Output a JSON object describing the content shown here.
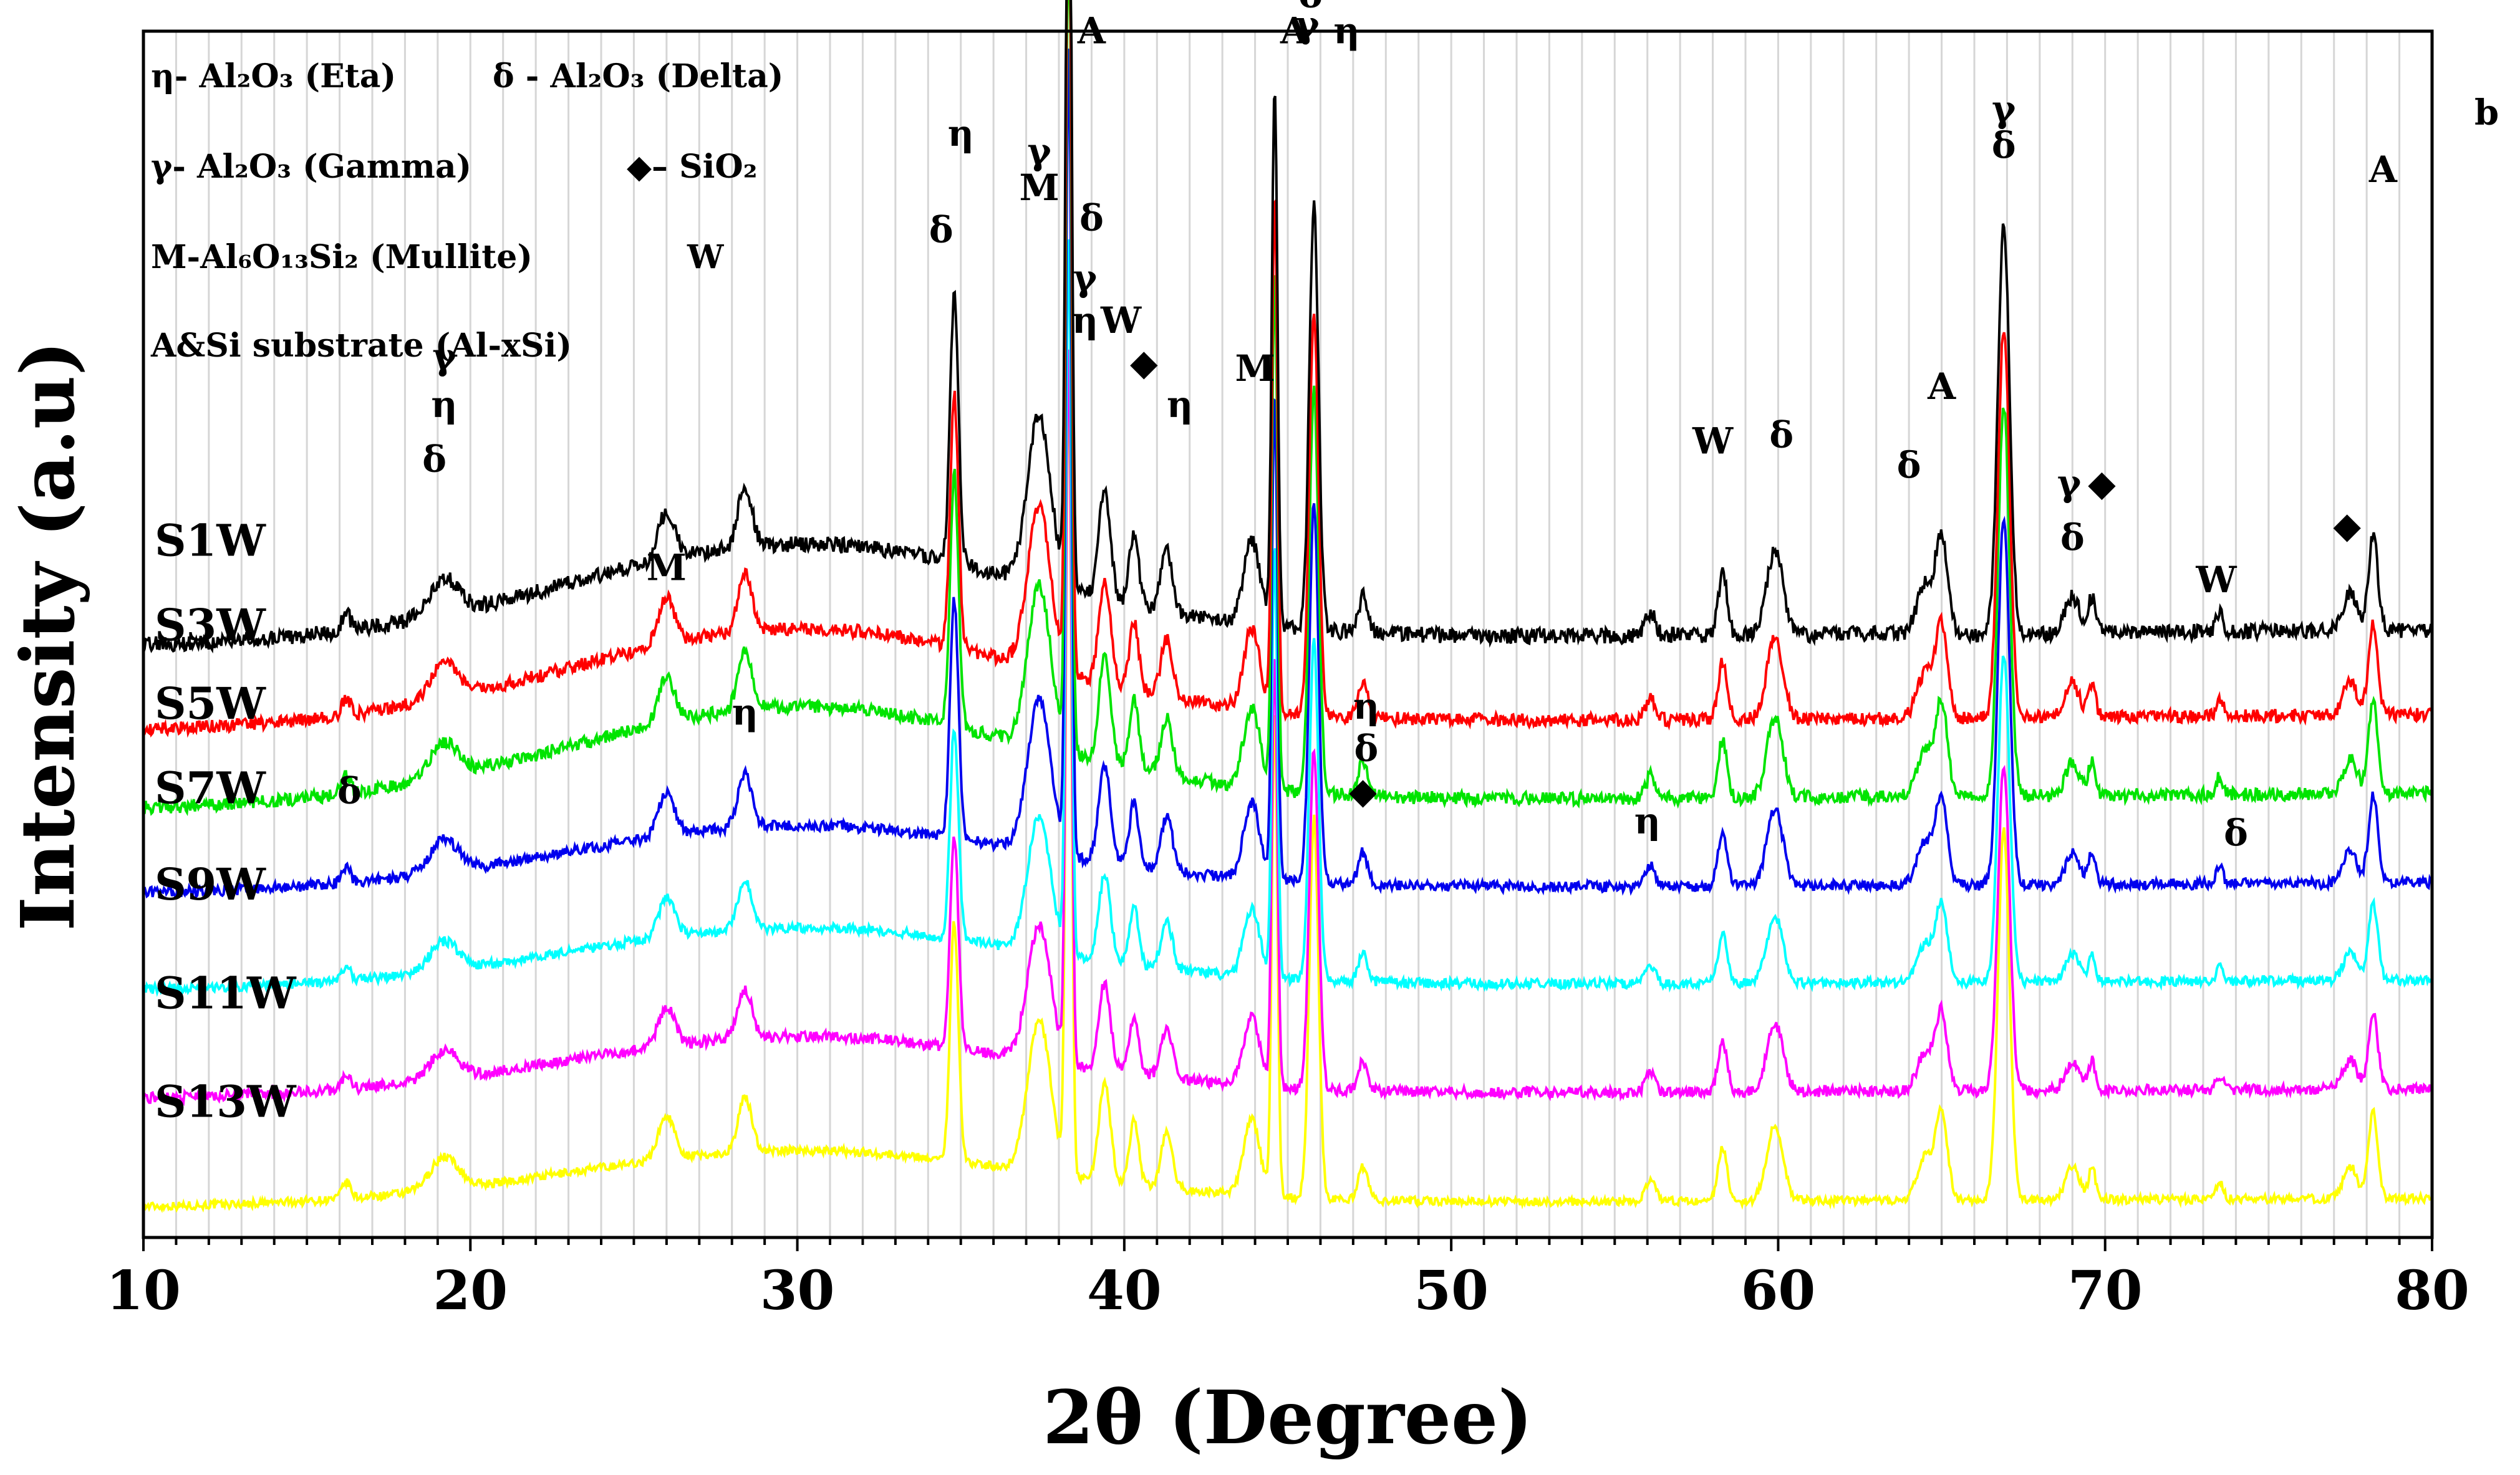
{
  "chart_data": {
    "type": "line",
    "panel_label": "b",
    "xlabel": "2θ (Degree)",
    "ylabel": "Intensity (a.u)",
    "xlim": [
      10,
      80
    ],
    "ylim": [
      0,
      100
    ],
    "x_ticks": [
      10,
      20,
      30,
      40,
      50,
      60,
      70,
      80
    ],
    "legend": [
      "η- Al₂O₃ (Eta)",
      "δ - Al₂O₃ (Delta)",
      "γ- Al₂O₃ (Gamma)",
      "◆– SiO₂",
      "M-Al₆O₁₃Si₂ (Mullite)",
      "W",
      "A&Si substrate (Al-xSi)"
    ],
    "series": [
      {
        "name": "S1W",
        "color": "#000000",
        "offset": 49,
        "amp": 1.0,
        "rise": 0.9,
        "jagged": 1.3
      },
      {
        "name": "S3W",
        "color": "#ff0000",
        "offset": 42,
        "amp": 0.95,
        "rise": 0.9,
        "jagged": 1.1
      },
      {
        "name": "S5W",
        "color": "#00e400",
        "offset": 35.5,
        "amp": 0.95,
        "rise": 0.9,
        "jagged": 1.1
      },
      {
        "name": "S7W",
        "color": "#0000ee",
        "offset": 28.5,
        "amp": 0.9,
        "rise": 0.6,
        "jagged": 0.9
      },
      {
        "name": "S9W",
        "color": "#00ffff",
        "offset": 20.5,
        "amp": 0.8,
        "rise": 0.55,
        "jagged": 0.8
      },
      {
        "name": "S11W",
        "color": "#ff00ff",
        "offset": 11.5,
        "amp": 0.8,
        "rise": 0.55,
        "jagged": 0.9
      },
      {
        "name": "S13W",
        "color": "#ffff00",
        "offset": 2.5,
        "amp": 0.9,
        "rise": 0.5,
        "jagged": 0.7
      }
    ],
    "peaks": [
      {
        "x": 16.2,
        "h": 1.5,
        "w": 0.18
      },
      {
        "x": 19.2,
        "h": 3,
        "w": 0.6
      },
      {
        "x": 26.0,
        "h": 4,
        "w": 0.35
      },
      {
        "x": 28.4,
        "h": 5,
        "w": 0.3
      },
      {
        "x": 34.8,
        "h": 22,
        "w": 0.18
      },
      {
        "x": 37.4,
        "h": 14,
        "w": 0.5
      },
      {
        "x": 38.3,
        "h": 75,
        "w": 0.12
      },
      {
        "x": 39.4,
        "h": 9,
        "w": 0.25
      },
      {
        "x": 40.3,
        "h": 6,
        "w": 0.2
      },
      {
        "x": 41.3,
        "h": 5,
        "w": 0.25
      },
      {
        "x": 43.9,
        "h": 7,
        "w": 0.35
      },
      {
        "x": 44.6,
        "h": 45,
        "w": 0.12
      },
      {
        "x": 45.8,
        "h": 35,
        "w": 0.2
      },
      {
        "x": 47.3,
        "h": 3,
        "w": 0.2
      },
      {
        "x": 56.1,
        "h": 2,
        "w": 0.2
      },
      {
        "x": 58.3,
        "h": 5,
        "w": 0.2
      },
      {
        "x": 59.9,
        "h": 7,
        "w": 0.35
      },
      {
        "x": 64.5,
        "h": 4,
        "w": 0.35
      },
      {
        "x": 65.0,
        "h": 8,
        "w": 0.25
      },
      {
        "x": 66.9,
        "h": 34,
        "w": 0.25
      },
      {
        "x": 69.0,
        "h": 3,
        "w": 0.3
      },
      {
        "x": 69.6,
        "h": 3,
        "w": 0.15
      },
      {
        "x": 73.5,
        "h": 1.5,
        "w": 0.15
      },
      {
        "x": 77.5,
        "h": 3,
        "w": 0.3
      },
      {
        "x": 78.2,
        "h": 8,
        "w": 0.2
      }
    ],
    "peak_annotations": [
      {
        "text": "γ",
        "x": 19.2,
        "y": 72
      },
      {
        "text": "η",
        "x": 19.2,
        "y": 68
      },
      {
        "text": "δ",
        "x": 18.9,
        "y": 63.5
      },
      {
        "text": "M",
        "x": 26.0,
        "y": 54.5
      },
      {
        "text": "δ",
        "x": 16.3,
        "y": 36
      },
      {
        "text": "η",
        "x": 28.4,
        "y": 42.5
      },
      {
        "text": "δ",
        "x": 34.4,
        "y": 82.5
      },
      {
        "text": "η",
        "x": 35.0,
        "y": 90.5
      },
      {
        "text": "γ",
        "x": 37.4,
        "y": 89
      },
      {
        "text": "M",
        "x": 37.4,
        "y": 86
      },
      {
        "text": "A",
        "x": 39.0,
        "y": 99
      },
      {
        "text": "δ",
        "x": 39.0,
        "y": 83.5
      },
      {
        "text": "γ",
        "x": 38.8,
        "y": 78.5
      },
      {
        "text": "η",
        "x": 38.8,
        "y": 75
      },
      {
        "text": "W",
        "x": 39.9,
        "y": 75
      },
      {
        "text": "◆",
        "x": 40.6,
        "y": 71.5
      },
      {
        "text": "η",
        "x": 41.7,
        "y": 68
      },
      {
        "text": "M",
        "x": 44.0,
        "y": 71
      },
      {
        "text": "A",
        "x": 45.2,
        "y": 99
      },
      {
        "text": "δ",
        "x": 45.7,
        "y": 102
      },
      {
        "text": "γ",
        "x": 45.6,
        "y": 99.5
      },
      {
        "text": "η",
        "x": 46.8,
        "y": 99
      },
      {
        "text": "η",
        "x": 47.4,
        "y": 43
      },
      {
        "text": "δ",
        "x": 47.4,
        "y": 39.5
      },
      {
        "text": "◆",
        "x": 47.3,
        "y": 36
      },
      {
        "text": "W",
        "x": 58.0,
        "y": 65
      },
      {
        "text": "δ",
        "x": 60.1,
        "y": 65.5
      },
      {
        "text": "η",
        "x": 56.0,
        "y": 33.5
      },
      {
        "text": "δ",
        "x": 64.0,
        "y": 63
      },
      {
        "text": "A",
        "x": 65.0,
        "y": 69.5
      },
      {
        "text": "γ",
        "x": 66.9,
        "y": 92.5
      },
      {
        "text": "δ",
        "x": 66.9,
        "y": 89.5
      },
      {
        "text": "γ",
        "x": 68.9,
        "y": 61.5
      },
      {
        "text": "◆",
        "x": 69.9,
        "y": 61.5
      },
      {
        "text": "δ",
        "x": 69.0,
        "y": 57
      },
      {
        "text": "W",
        "x": 73.4,
        "y": 53.5
      },
      {
        "text": "δ",
        "x": 74.0,
        "y": 32.5
      },
      {
        "text": "◆",
        "x": 77.4,
        "y": 58
      },
      {
        "text": "A",
        "x": 78.5,
        "y": 87.5
      }
    ]
  }
}
